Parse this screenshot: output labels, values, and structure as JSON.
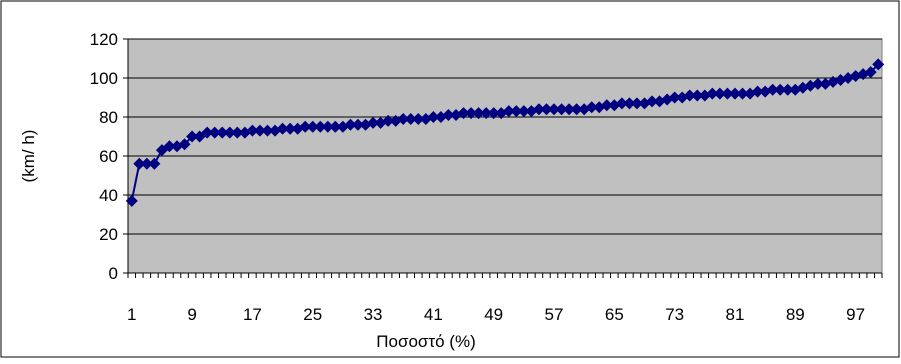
{
  "chart_data": {
    "type": "line",
    "title": "",
    "xlabel": "Ποσοστό (%)",
    "ylabel": "(km/ h)",
    "x": [
      1,
      2,
      3,
      4,
      5,
      6,
      7,
      8,
      9,
      10,
      11,
      12,
      13,
      14,
      15,
      16,
      17,
      18,
      19,
      20,
      21,
      22,
      23,
      24,
      25,
      26,
      27,
      28,
      29,
      30,
      31,
      32,
      33,
      34,
      35,
      36,
      37,
      38,
      39,
      40,
      41,
      42,
      43,
      44,
      45,
      46,
      47,
      48,
      49,
      50,
      51,
      52,
      53,
      54,
      55,
      56,
      57,
      58,
      59,
      60,
      61,
      62,
      63,
      64,
      65,
      66,
      67,
      68,
      69,
      70,
      71,
      72,
      73,
      74,
      75,
      76,
      77,
      78,
      79,
      80,
      81,
      82,
      83,
      84,
      85,
      86,
      87,
      88,
      89,
      90,
      91,
      92,
      93,
      94,
      95,
      96,
      97,
      98,
      99,
      100
    ],
    "series": [
      {
        "values": [
          37,
          56,
          56,
          56,
          63,
          65,
          65,
          66,
          70,
          70,
          72,
          72,
          72,
          72,
          72,
          72,
          73,
          73,
          73,
          73,
          74,
          74,
          74,
          75,
          75,
          75,
          75,
          75,
          75,
          76,
          76,
          76,
          77,
          77,
          78,
          78,
          79,
          79,
          79,
          79,
          80,
          80,
          81,
          81,
          82,
          82,
          82,
          82,
          82,
          82,
          83,
          83,
          83,
          83,
          84,
          84,
          84,
          84,
          84,
          84,
          84,
          85,
          85,
          86,
          86,
          87,
          87,
          87,
          87,
          88,
          88,
          89,
          90,
          90,
          91,
          91,
          91,
          92,
          92,
          92,
          92,
          92,
          92,
          93,
          93,
          94,
          94,
          94,
          94,
          95,
          96,
          97,
          97,
          98,
          99,
          100,
          101,
          102,
          103,
          107
        ]
      }
    ],
    "x_tick_labels": [
      "1",
      "9",
      "17",
      "25",
      "33",
      "41",
      "49",
      "57",
      "65",
      "73",
      "81",
      "89",
      "97"
    ],
    "y_tick_labels": [
      "0",
      "20",
      "40",
      "60",
      "80",
      "100",
      "120"
    ],
    "ylim": [
      0,
      120
    ],
    "xlim": [
      1,
      100
    ],
    "grid": "horizontal",
    "legend": "none",
    "colors": {
      "plot_background": "#C0C0C0",
      "series": "#000080",
      "gridline": "#000000",
      "frame": "#000000"
    },
    "marker": "diamond"
  }
}
